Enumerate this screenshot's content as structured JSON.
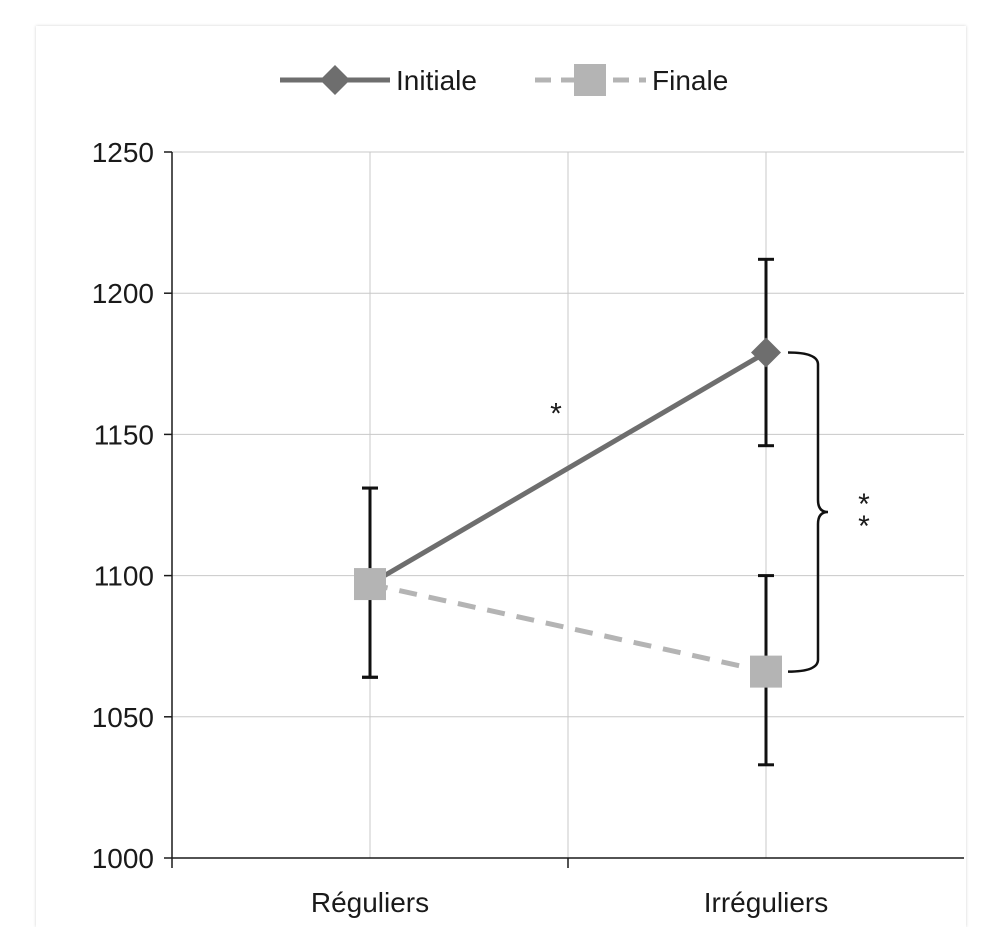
{
  "chart_data": {
    "type": "line",
    "categories": [
      "Réguliers",
      "Irréguliers"
    ],
    "series": [
      {
        "name": "Initiale",
        "values": [
          1097,
          1179
        ],
        "err_low": [
          1064,
          1146
        ],
        "err_high": [
          1131,
          1212
        ],
        "color": "#6e6e6e",
        "style": "solid",
        "marker": "diamond"
      },
      {
        "name": "Finale",
        "values": [
          1097,
          1066
        ],
        "err_low": [
          1064,
          1033
        ],
        "err_high": [
          1131,
          1100
        ],
        "color": "#b4b4b4",
        "style": "dashed",
        "marker": "square"
      }
    ],
    "ylim": [
      1000,
      1250
    ],
    "yticks": [
      "1000",
      "1050",
      "1100",
      "1150",
      "1200",
      "1250"
    ],
    "grid": true,
    "legend": "top-center",
    "annotations": [
      {
        "text": "*",
        "between": "Initiale Réguliers–Irréguliers"
      },
      {
        "text": "**",
        "between": "Initiale vs Finale at Irréguliers"
      }
    ]
  }
}
